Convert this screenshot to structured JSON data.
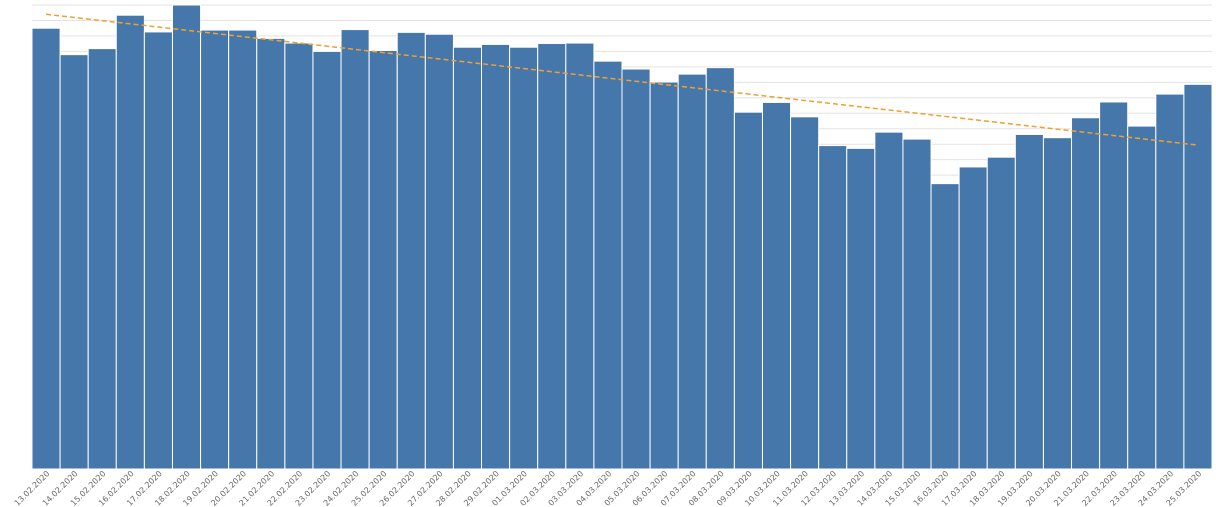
{
  "colors": {
    "bar": "#4677ab",
    "trend": "#f0a030",
    "grid": "#e3e3e3",
    "tick": "#666666"
  },
  "chart_data": {
    "type": "bar",
    "title": "",
    "xlabel": "",
    "ylabel": "",
    "grid": true,
    "y_axis_labels_visible": false,
    "ylim": [
      0,
      1000
    ],
    "categories": [
      "13.02.2020",
      "14.02.2020",
      "15.02.2020",
      "16.02.2020",
      "17.02.2020",
      "18.02.2020",
      "19.02.2020",
      "20.02.2020",
      "21.02.2020",
      "22.02.2020",
      "23.02.2020",
      "24.02.2020",
      "25.02.2020",
      "26.02.2020",
      "27.02.2020",
      "28.02.2020",
      "29.02.2020",
      "01.03.2020",
      "02.03.2020",
      "03.03.2020",
      "04.03.2020",
      "05.03.2020",
      "06.03.2020",
      "07.03.2020",
      "08.03.2020",
      "09.03.2020",
      "10.03.2020",
      "11.03.2020",
      "12.03.2020",
      "13.03.2020",
      "14.03.2020",
      "15.03.2020",
      "16.03.2020",
      "17.03.2020",
      "18.03.2020",
      "19.03.2020",
      "20.03.2020",
      "21.03.2020",
      "22.03.2020",
      "23.03.2020",
      "24.03.2020",
      "25.03.2020"
    ],
    "values": [
      950,
      893,
      906,
      978,
      942,
      1000,
      946,
      946,
      928,
      918,
      900,
      947,
      902,
      941,
      937,
      909,
      915,
      909,
      917,
      918,
      879,
      862,
      834,
      851,
      865,
      769,
      790,
      759,
      697,
      691,
      726,
      711,
      615,
      651,
      672,
      721,
      714,
      757,
      791,
      739,
      808,
      829
    ],
    "trendline": {
      "type": "linear",
      "style": "dashed",
      "start_value": 980,
      "end_value": 698
    }
  }
}
